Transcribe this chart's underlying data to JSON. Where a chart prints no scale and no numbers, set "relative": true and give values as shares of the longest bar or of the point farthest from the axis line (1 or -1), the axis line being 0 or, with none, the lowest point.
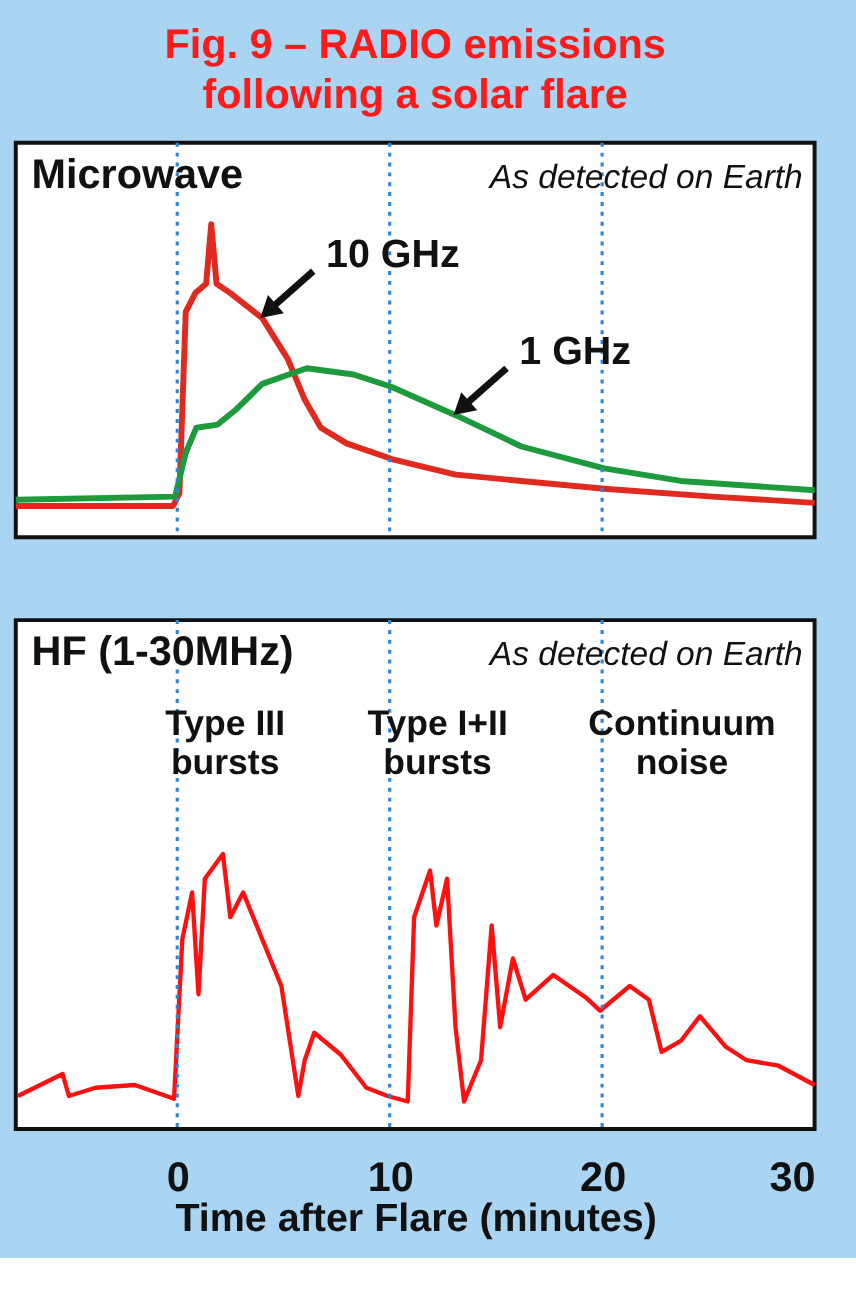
{
  "chart_data": [
    {
      "type": "line",
      "title": "Microwave",
      "subtitle": "As detected on Earth",
      "annotations": [
        "Fig. 9 – RADIO emissions following a solar flare"
      ],
      "xlim": [
        -7.6,
        30
      ],
      "tick_labels": false,
      "relative": true,
      "grid": false,
      "ref_lines": [
        {
          "axis": "x",
          "value": 0,
          "color": "#2f86d0",
          "line_style": "dotted"
        },
        {
          "axis": "x",
          "value": 10,
          "color": "#2f86d0",
          "line_style": "dotted"
        },
        {
          "axis": "x",
          "value": 20,
          "color": "#2f86d0",
          "line_style": "dotted"
        }
      ],
      "series": [
        {
          "name": "10 GHz",
          "color": "#e02a20",
          "x": [
            -7.6,
            -0.2,
            0.1,
            0.4,
            0.85,
            1.36,
            1.6,
            1.85,
            2.5,
            4.0,
            5.2,
            6.0,
            6.76,
            7.97,
            10.1,
            13.1,
            16.2,
            20.1,
            25.2,
            30
          ],
          "values": [
            0.1,
            0.1,
            0.14,
            0.72,
            0.78,
            0.81,
            1.0,
            0.81,
            0.78,
            0.7,
            0.57,
            0.44,
            0.35,
            0.3,
            0.25,
            0.2,
            0.18,
            0.155,
            0.13,
            0.11
          ]
        },
        {
          "name": "1 GHz",
          "color": "#1c9a3c",
          "x": [
            -7.6,
            -0.1,
            0.4,
            0.9,
            1.9,
            2.8,
            4.0,
            6.1,
            8.3,
            10.1,
            13.1,
            16.2,
            20.1,
            23.7,
            30
          ],
          "values": [
            0.12,
            0.13,
            0.27,
            0.35,
            0.36,
            0.41,
            0.49,
            0.54,
            0.52,
            0.48,
            0.39,
            0.29,
            0.22,
            0.18,
            0.15
          ]
        }
      ]
    },
    {
      "type": "line",
      "title": "HF (1-30MHz)",
      "subtitle": "As detected on Earth",
      "annotations": [
        "Type III bursts",
        "Type I+II bursts",
        "Continuum noise"
      ],
      "xlabel": "Time after Flare (minutes)",
      "xlim": [
        -7.6,
        30
      ],
      "xticks": [
        0,
        10,
        20,
        30
      ],
      "tick_labels": "x",
      "relative": true,
      "grid": false,
      "ref_lines": [
        {
          "axis": "x",
          "value": 0,
          "color": "#2f86d0",
          "line_style": "dotted"
        },
        {
          "axis": "x",
          "value": 10,
          "color": "#2f86d0",
          "line_style": "dotted"
        },
        {
          "axis": "x",
          "value": 20,
          "color": "#2f86d0",
          "line_style": "dotted"
        }
      ],
      "series": [
        {
          "color": "#ff1010",
          "x": [
            -7.5,
            -5.4,
            -5.1,
            -3.85,
            -2.0,
            -0.15,
            0.24,
            0.7,
            1.0,
            1.3,
            2.15,
            2.5,
            3.1,
            4.0,
            4.9,
            5.2,
            5.7,
            6.0,
            6.45,
            7.7,
            8.9,
            9.9,
            10.85,
            11.15,
            11.9,
            12.2,
            12.7,
            13.1,
            13.5,
            14.3,
            14.8,
            15.2,
            15.8,
            16.4,
            17.7,
            19.2,
            19.9,
            21.3,
            22.2,
            22.8,
            23.7,
            24.6,
            25.8,
            26.8,
            28.3,
            30
          ],
          "values": [
            0.12,
            0.2,
            0.12,
            0.15,
            0.16,
            0.11,
            0.69,
            0.86,
            0.49,
            0.91,
            1.0,
            0.77,
            0.86,
            0.69,
            0.52,
            0.37,
            0.12,
            0.25,
            0.35,
            0.27,
            0.15,
            0.12,
            0.1,
            0.77,
            0.94,
            0.74,
            0.91,
            0.37,
            0.1,
            0.25,
            0.74,
            0.37,
            0.62,
            0.47,
            0.56,
            0.48,
            0.43,
            0.52,
            0.47,
            0.28,
            0.32,
            0.41,
            0.3,
            0.25,
            0.23,
            0.16
          ]
        }
      ]
    }
  ]
}
